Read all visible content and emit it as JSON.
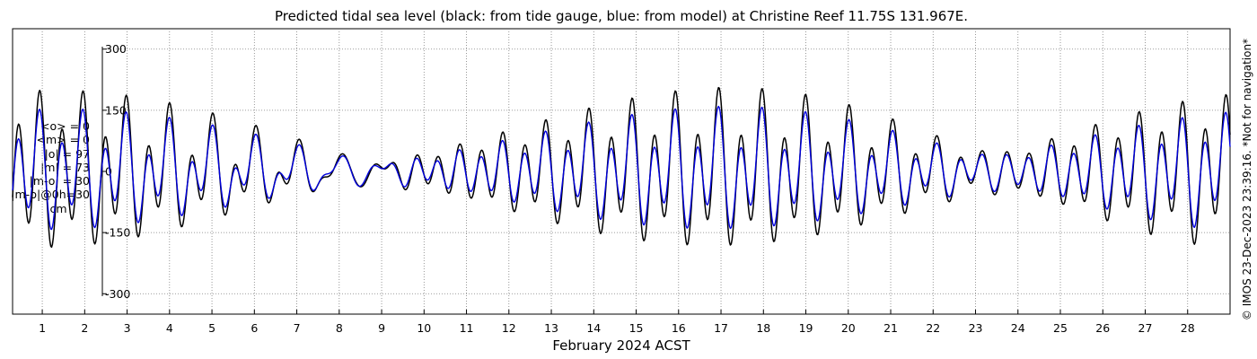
{
  "title": "Predicted tidal sea level (black: from tide gauge, blue: from model) at Christine Reef 11.75S 131.967E.",
  "stats": [
    "<o> = 0",
    "<m> = 0",
    "|o| = 97",
    "|m| = 73",
    "|m-o| = 30",
    "|m-o|@0h=30",
    "cm"
  ],
  "credit": "© IMOS 23-Dec-2023 23:39:16. *Not for navigation*",
  "colors": {
    "observed": "#000000",
    "model": "#0000dd",
    "grid": "#7f7f7f",
    "axes": "#000000"
  },
  "chart_data": {
    "type": "line",
    "xlabel": "February 2024 ACST",
    "ylabel": "",
    "xlim": [
      0.3,
      29.0
    ],
    "ylim": [
      -350,
      350
    ],
    "x_ticks": [
      1,
      2,
      3,
      4,
      5,
      6,
      7,
      8,
      9,
      10,
      11,
      12,
      13,
      14,
      15,
      16,
      17,
      18,
      19,
      20,
      21,
      22,
      23,
      24,
      25,
      26,
      27,
      28
    ],
    "y_ticks": [
      -300,
      -150,
      0,
      150,
      300
    ],
    "grid": true,
    "legend": "none",
    "series": [
      {
        "color": "#000000",
        "x_start": 0.3,
        "x_end": 29.0,
        "step_days": 0.02,
        "tidal_model": {
          "constituents": [
            {
              "period_hours": 12.42,
              "amplitude_cm": 85,
              "phase": 1.2
            },
            {
              "period_hours": 12.0,
              "amplitude_cm": 60,
              "phase": 0.7
            },
            {
              "period_hours": 23.93,
              "amplitude_cm": 38,
              "phase": 0.4
            },
            {
              "period_hours": 25.82,
              "amplitude_cm": 28,
              "phase": 2.1
            },
            {
              "period_hours": 12.66,
              "amplitude_cm": 18,
              "phase": 0.3
            }
          ]
        }
      },
      {
        "color": "#0000dd",
        "x_start": 0.3,
        "x_end": 29.0,
        "step_days": 0.02,
        "tidal_model": {
          "constituents": [
            {
              "period_hours": 12.42,
              "amplitude_cm": 65,
              "phase": 1.25
            },
            {
              "period_hours": 12.0,
              "amplitude_cm": 42,
              "phase": 0.75
            },
            {
              "period_hours": 23.93,
              "amplitude_cm": 34,
              "phase": 0.45
            },
            {
              "period_hours": 25.82,
              "amplitude_cm": 24,
              "phase": 2.15
            },
            {
              "period_hours": 12.66,
              "amplitude_cm": 13,
              "phase": 0.35
            }
          ]
        }
      }
    ]
  }
}
